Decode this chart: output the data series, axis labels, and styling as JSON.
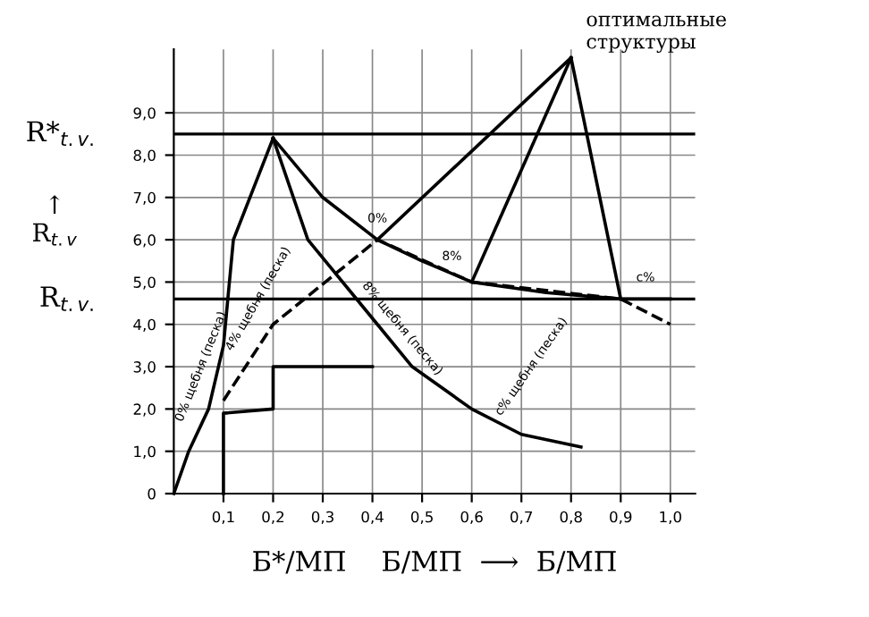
{
  "chart_data": {
    "type": "line",
    "xlabel": "Б*/МП    Б/МП  ⟶  Б/МП",
    "xlim": [
      0,
      1.05
    ],
    "ylim": [
      0,
      10.5
    ],
    "xticks": [
      {
        "value": 0.1,
        "label": "0,1"
      },
      {
        "value": 0.2,
        "label": "0,2"
      },
      {
        "value": 0.3,
        "label": "0,3"
      },
      {
        "value": 0.4,
        "label": "0,4"
      },
      {
        "value": 0.5,
        "label": "0,5"
      },
      {
        "value": 0.6,
        "label": "0,6"
      },
      {
        "value": 0.7,
        "label": "0,7"
      },
      {
        "value": 0.8,
        "label": "0,8"
      },
      {
        "value": 0.9,
        "label": "0,9"
      },
      {
        "value": 1.0,
        "label": "1,0"
      }
    ],
    "yticks": [
      0,
      {
        "value": 1,
        "label": "1,0"
      },
      {
        "value": 2,
        "label": "2,0"
      },
      {
        "value": 3,
        "label": "3,0"
      },
      {
        "value": 4,
        "label": "4,0"
      },
      {
        "value": 5,
        "label": "5,0"
      },
      {
        "value": 6,
        "label": "6,0"
      },
      {
        "value": 7,
        "label": "7,0"
      },
      {
        "value": 8,
        "label": "8,0"
      },
      {
        "value": 9,
        "label": "9,0"
      }
    ],
    "grid": true,
    "marker": "none",
    "series": [
      {
        "color": "#000000",
        "x": [
          0,
          0.03,
          0.07,
          0.1,
          0.12,
          0.2
        ],
        "values": [
          0,
          1,
          2,
          3.5,
          6,
          8.4
        ]
      },
      {
        "color": "#000000",
        "x": [
          0.2,
          0.3,
          0.41,
          0.5,
          0.6,
          0.75,
          0.9,
          1.0
        ],
        "values": [
          8.4,
          7.0,
          6.0,
          5.5,
          5.0,
          4.75,
          4.6,
          4.6
        ]
      },
      {
        "color": "#000000",
        "x": [
          0.2,
          0.27,
          0.41,
          0.48,
          0.6,
          0.7,
          0.82
        ],
        "values": [
          8.4,
          6.0,
          4.0,
          3.0,
          2.0,
          1.4,
          1.1
        ]
      },
      {
        "color": "#000000",
        "x": [
          0.1,
          0.1,
          0.2,
          0.2,
          0.4
        ],
        "values": [
          0,
          1.9,
          2.0,
          3.0,
          3.0
        ]
      },
      {
        "color": "#000000",
        "x": [
          0.41,
          0.8
        ],
        "values": [
          6.0,
          10.3
        ]
      },
      {
        "color": "#000000",
        "x": [
          0.6,
          0.8
        ],
        "values": [
          5.0,
          10.3
        ]
      },
      {
        "color": "#000000",
        "x": [
          0.9,
          0.8
        ],
        "values": [
          4.6,
          10.3
        ]
      },
      {
        "color": "#000000",
        "line_style": "dashed",
        "x": [
          0.1,
          0.2,
          0.41,
          0.6,
          0.9,
          1.0
        ],
        "values": [
          2.2,
          4.0,
          6.0,
          5.0,
          4.6,
          4.0
        ]
      }
    ],
    "ref_lines": [
      {
        "axis": "y",
        "value": 8.5,
        "label": "R*$_{t.v.}$"
      },
      {
        "axis": "y",
        "value": 4.6,
        "label": "R$_{t.v.}$"
      }
    ],
    "annotations": [
      "↑\nR$_{t.v}$",
      {
        "text": "оптимальные\nструктуры",
        "x": 0.8,
        "y": 10.3
      },
      "0% щебня (песка)",
      {
        "text": "4% щебня (песка)",
        "x": 0.17,
        "y": 4.6
      },
      "8% щебня (песка)",
      "c% щебня (песка)",
      {
        "text": "0%",
        "x": 0.41,
        "y": 6.0
      },
      "8%",
      "c%"
    ]
  }
}
